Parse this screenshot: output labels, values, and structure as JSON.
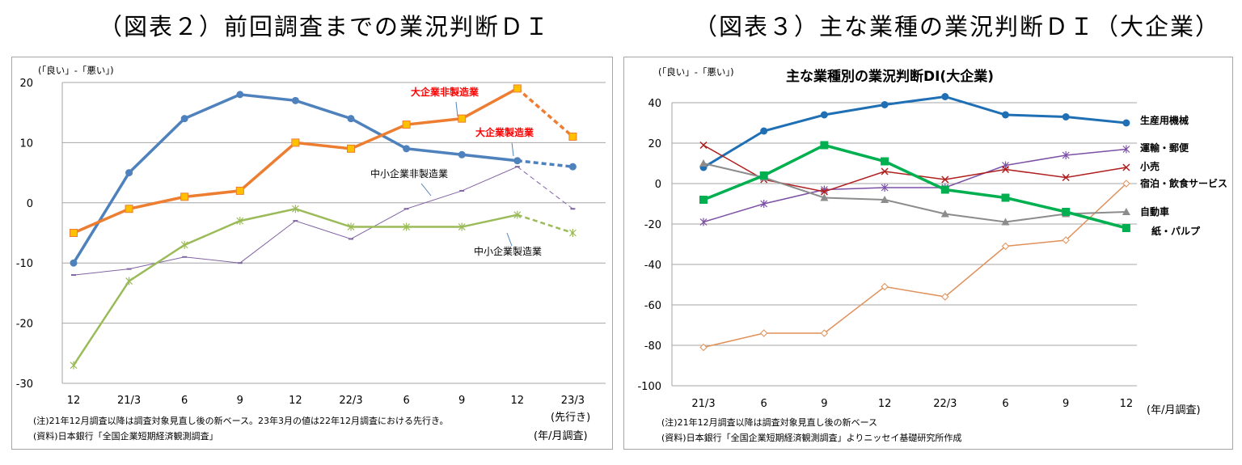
{
  "figures": [
    {
      "figure_title": "（図表２）前回調査までの業況判断ＤＩ",
      "notes": [
        "(注)21年12月調査以降は調査対象見直し後の新ベース。23年3月の値は22年12月調査における先行き。",
        "(資料)日本銀行「全国企業短期経済観測調査」"
      ]
    },
    {
      "figure_title": "（図表３）主な業種の業況判断ＤＩ（大企業）",
      "notes": [
        "(注)21年12月調査以降は調査対象見直し後の新ベース",
        "(資料)日本銀行「全国企業短期経済観測調査」よりニッセイ基礎研究所作成"
      ]
    }
  ],
  "chart_data": [
    {
      "type": "line",
      "title": "",
      "ylabel": "(「良い」-「悪い」)",
      "xlabel": "(年/月調査)",
      "categories": [
        "12",
        "21/3",
        "6",
        "9",
        "12",
        "22/3",
        "6",
        "9",
        "12",
        "23/3"
      ],
      "forecast_label": "(先行き)",
      "ylim": [
        -30,
        20
      ],
      "yticks": [
        20,
        10,
        0,
        -10,
        -20,
        -30
      ],
      "grid": true,
      "series": [
        {
          "name": "大企業非製造業",
          "color": "#4f81bd",
          "marker": "circle",
          "values": [
            -10,
            5,
            14,
            18,
            17,
            14,
            9,
            8,
            7,
            6
          ]
        },
        {
          "name": "大企業製造業",
          "color": "#ed7d31",
          "marker": "square",
          "values": [
            -5,
            -1,
            1,
            2,
            10,
            9,
            13,
            14,
            19,
            11
          ]
        },
        {
          "name": "中小企業非製造業",
          "color": "#8064a2",
          "marker": "dash",
          "values": [
            -12,
            -11,
            -9,
            -10,
            -3,
            -6,
            -1,
            2,
            6,
            -1
          ]
        },
        {
          "name": "中小企業製造業",
          "color": "#9bbb59",
          "marker": "star",
          "values": [
            -27,
            -13,
            -7,
            -3,
            -1,
            -4,
            -4,
            -4,
            -2,
            -5
          ]
        }
      ],
      "annotations": [
        {
          "text": "大企業非製造業",
          "color": "#ff0000"
        },
        {
          "text": "大企業製造業",
          "color": "#ff0000"
        },
        {
          "text": "中小企業非製造業",
          "color": "#000000"
        },
        {
          "text": "中小企業製造業",
          "color": "#000000"
        }
      ]
    },
    {
      "type": "line",
      "title": "主な業種別の業況判断DI(大企業)",
      "ylabel": "(「良い」-「悪い」)",
      "xlabel": "(年/月調査)",
      "categories": [
        "21/3",
        "6",
        "9",
        "12",
        "22/3",
        "6",
        "9",
        "12"
      ],
      "ylim": [
        -100,
        40
      ],
      "yticks": [
        40,
        20,
        0,
        -20,
        -40,
        -60,
        -80,
        -100
      ],
      "grid": true,
      "series": [
        {
          "name": "生産用機械",
          "color": "#1f6fb5",
          "marker": "circle",
          "values": [
            8,
            26,
            34,
            39,
            43,
            34,
            33,
            30
          ]
        },
        {
          "name": "運輸・郵便",
          "color": "#7b50a5",
          "marker": "star",
          "values": [
            -19,
            -10,
            -3,
            -2,
            -2,
            9,
            14,
            17
          ]
        },
        {
          "name": "小売",
          "color": "#b01e1e",
          "marker": "x",
          "values": [
            19,
            2,
            -4,
            6,
            2,
            7,
            3,
            8
          ]
        },
        {
          "name": "宿泊・飲食サービス",
          "color": "#e0915a",
          "marker": "diamond",
          "values": [
            -81,
            -74,
            -74,
            -51,
            -56,
            -31,
            -28,
            0
          ]
        },
        {
          "name": "自動車",
          "color": "#8c8c8c",
          "marker": "triangle",
          "values": [
            10,
            3,
            -7,
            -8,
            -15,
            -19,
            -15,
            -14
          ]
        },
        {
          "name": "紙・パルプ",
          "color": "#00b050",
          "marker": "square",
          "values": [
            -8,
            4,
            19,
            11,
            -3,
            -7,
            -14,
            -22
          ]
        }
      ]
    }
  ]
}
